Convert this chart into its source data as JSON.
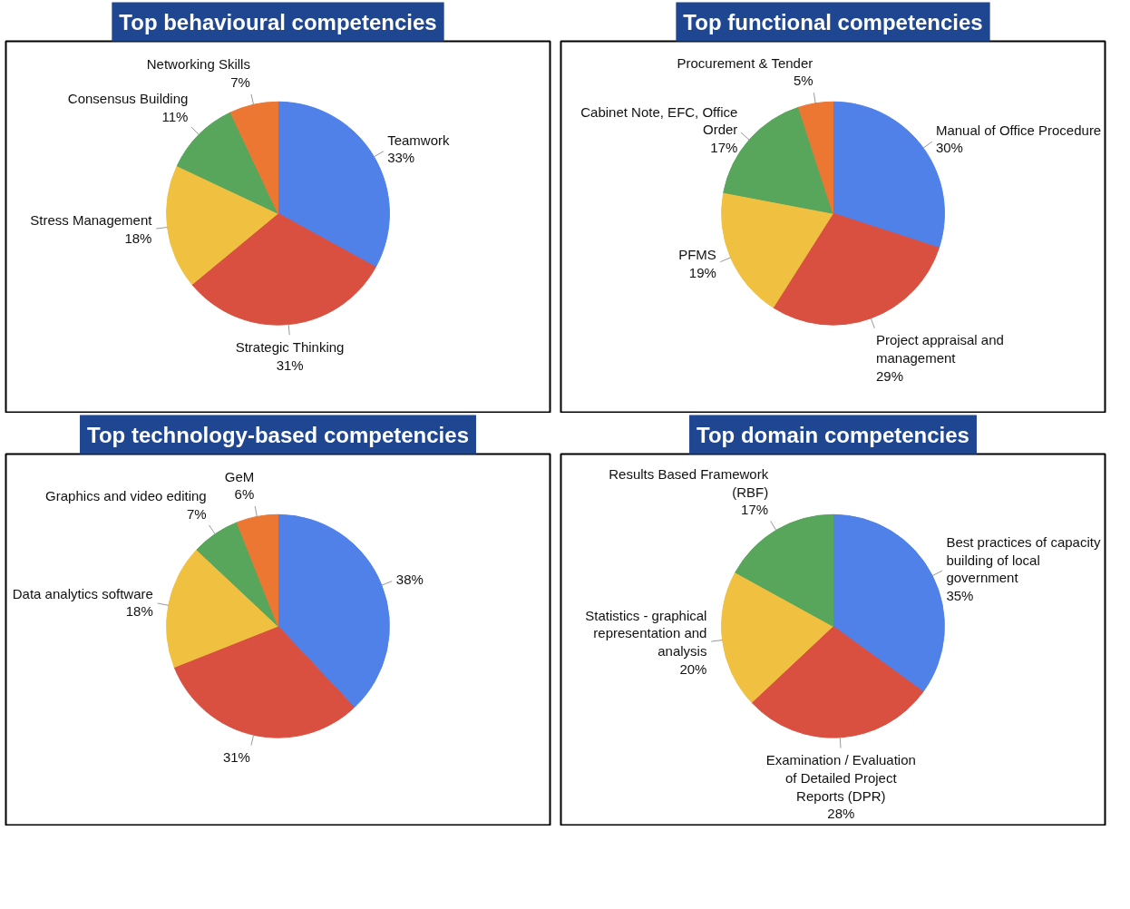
{
  "chart_data": [
    {
      "type": "pie",
      "title": "Top behavioural competencies",
      "categories": [
        "Teamwork",
        "Strategic Thinking",
        "Stress Management",
        "Consensus Building",
        "Networking Skills"
      ],
      "values": [
        33,
        31,
        18,
        11,
        7
      ],
      "value_labels": [
        "33%",
        "31%",
        "18%",
        "11%",
        "7%"
      ],
      "colors": [
        "#4f81e8",
        "#d95040",
        "#f0c040",
        "#58a55c",
        "#ec7733"
      ]
    },
    {
      "type": "pie",
      "title": "Top functional competencies",
      "categories": [
        "Manual of Office Procedure",
        "Project appraisal and management",
        "PFMS",
        "Cabinet Note, EFC, Office Order",
        "Procurement & Tender"
      ],
      "values": [
        30,
        29,
        19,
        17,
        5
      ],
      "value_labels": [
        "30%",
        "29%",
        "19%",
        "17%",
        "5%"
      ],
      "colors": [
        "#4f81e8",
        "#d95040",
        "#f0c040",
        "#58a55c",
        "#ec7733"
      ]
    },
    {
      "type": "pie",
      "title": "Top technology-based competencies",
      "categories": [
        null,
        null,
        "Data analytics software",
        "Graphics and video editing",
        "GeM"
      ],
      "values": [
        38,
        31,
        18,
        7,
        6
      ],
      "value_labels": [
        "38%",
        "31%",
        "18%",
        "7%",
        "6%"
      ],
      "colors": [
        "#4f81e8",
        "#d95040",
        "#f0c040",
        "#58a55c",
        "#ec7733"
      ]
    },
    {
      "type": "pie",
      "title": "Top domain competencies",
      "categories": [
        "Best practices of capacity building of local government",
        "Examination / Evaluation of Detailed Project Reports (DPR)",
        "Statistics - graphical representation and analysis",
        "Results Based Framework (RBF)"
      ],
      "values": [
        35,
        28,
        20,
        17
      ],
      "value_labels": [
        "35%",
        "28%",
        "20%",
        "17%"
      ],
      "colors": [
        "#4f81e8",
        "#d95040",
        "#f0c040",
        "#58a55c"
      ]
    }
  ]
}
